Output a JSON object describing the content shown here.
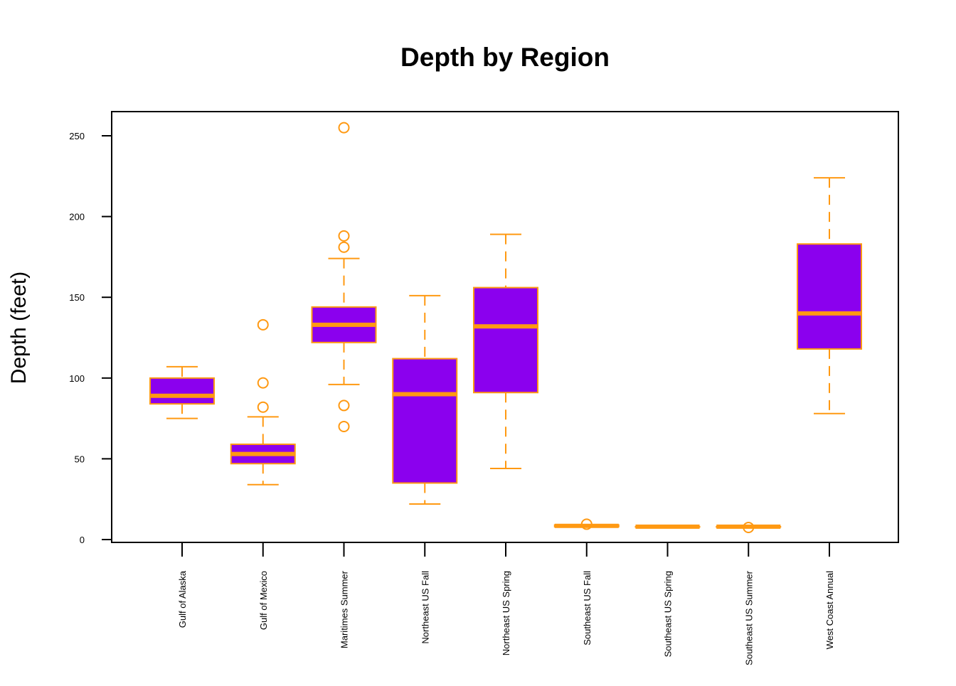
{
  "chart_data": {
    "type": "box",
    "title": "Depth by Region",
    "xlabel": "",
    "ylabel": "Depth (feet)",
    "ylim": [
      0,
      265
    ],
    "yticks": [
      0,
      50,
      100,
      150,
      200,
      250
    ],
    "grid": false,
    "legend": "none",
    "colors": {
      "box_fill": "#8B00EE",
      "box_line": "#FF9912",
      "axis": "#000000"
    },
    "categories": [
      "Gulf of Alaska",
      "Gulf of Mexico",
      "Maritimes Summer",
      "Northeast US Fall",
      "Northeast US Spring",
      "Southeast US Fall",
      "Southeast US Spring",
      "Southeast US Summer",
      "West Coast Annual"
    ],
    "boxes": [
      {
        "min": 75,
        "q1": 84,
        "median": 89,
        "q3": 100,
        "max": 107,
        "outliers": []
      },
      {
        "min": 34,
        "q1": 47,
        "median": 53,
        "q3": 59,
        "max": 76,
        "outliers": [
          82,
          97,
          133
        ]
      },
      {
        "min": 96,
        "q1": 122,
        "median": 133,
        "q3": 144,
        "max": 174,
        "outliers": [
          70,
          83,
          181,
          188,
          255
        ]
      },
      {
        "min": 22,
        "q1": 35,
        "median": 90,
        "q3": 112,
        "max": 151,
        "outliers": []
      },
      {
        "min": 44,
        "q1": 91,
        "median": 132,
        "q3": 156,
        "max": 189,
        "outliers": []
      },
      {
        "min": 8,
        "q1": 8,
        "median": 8.5,
        "q3": 9,
        "max": 9,
        "outliers": [
          9.5
        ]
      },
      {
        "min": 8,
        "q1": 8,
        "median": 8,
        "q3": 8,
        "max": 8,
        "outliers": []
      },
      {
        "min": 8,
        "q1": 8,
        "median": 8,
        "q3": 8,
        "max": 8,
        "outliers": [
          7.5
        ]
      },
      {
        "min": 78,
        "q1": 118,
        "median": 140,
        "q3": 183,
        "max": 224,
        "outliers": []
      }
    ]
  }
}
